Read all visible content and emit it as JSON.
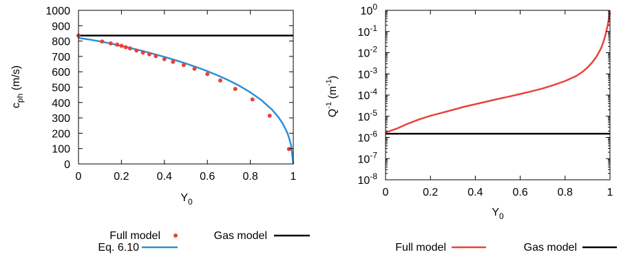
{
  "colors": {
    "full_model": "#e8423a",
    "eq_610": "#2b8fd6",
    "gas_model": "#000000"
  },
  "chart_data": [
    {
      "type": "line",
      "xlabel": "Y_0",
      "ylabel": "c_ph (m/s)",
      "xlim": [
        0,
        1
      ],
      "ylim": [
        0,
        1000
      ],
      "xticks": [
        0,
        0.2,
        0.4,
        0.6,
        0.8,
        1
      ],
      "xtick_labels": [
        "0",
        "0.2",
        "0.4",
        "0.6",
        "0.8",
        "1"
      ],
      "yticks": [
        0,
        100,
        200,
        300,
        400,
        500,
        600,
        700,
        800,
        900,
        1000
      ],
      "ytick_labels": [
        "0",
        "100",
        "200",
        "300",
        "400",
        "500",
        "600",
        "700",
        "800",
        "900",
        "1000"
      ],
      "grid": false,
      "legend_placement": "below",
      "series": [
        {
          "name": "Full model",
          "style": "points",
          "color": "#e8423a",
          "x": [
            0,
            0.11,
            0.15,
            0.18,
            0.2,
            0.22,
            0.24,
            0.27,
            0.3,
            0.33,
            0.36,
            0.4,
            0.44,
            0.49,
            0.54,
            0.6,
            0.66,
            0.73,
            0.81,
            0.89,
            0.98
          ],
          "y": [
            836,
            797,
            785,
            777,
            769,
            760,
            752,
            738,
            725,
            714,
            702,
            682,
            665,
            644,
            620,
            585,
            543,
            488,
            420,
            314,
            97
          ]
        },
        {
          "name": "Eq. 6.10",
          "style": "line",
          "color": "#2b8fd6",
          "x": [
            0,
            0.05,
            0.1,
            0.15,
            0.2,
            0.25,
            0.3,
            0.35,
            0.4,
            0.45,
            0.5,
            0.55,
            0.6,
            0.65,
            0.7,
            0.75,
            0.8,
            0.85,
            0.9,
            0.93,
            0.95,
            0.97,
            0.98,
            0.99,
            1.0
          ],
          "y": [
            820,
            810,
            798,
            784,
            768,
            752,
            735,
            716,
            697,
            676,
            654,
            630,
            604,
            575,
            544,
            508,
            466,
            417,
            355,
            306,
            265,
            210,
            172,
            120,
            0
          ]
        },
        {
          "name": "Gas model",
          "style": "line",
          "color": "#000000",
          "x": [
            0,
            1
          ],
          "y": [
            836,
            836
          ]
        }
      ]
    },
    {
      "type": "line",
      "xlabel": "Y_0",
      "ylabel": "Q^-1 (m^-1)",
      "xlim": [
        0,
        1
      ],
      "ylim": [
        1e-08,
        1
      ],
      "yscale": "log",
      "xticks": [
        0,
        0.2,
        0.4,
        0.6,
        0.8,
        1
      ],
      "xtick_labels": [
        "0",
        "0.2",
        "0.4",
        "0.6",
        "0.8",
        "1"
      ],
      "ytick_exponents": [
        -8,
        -7,
        -6,
        -5,
        -4,
        -3,
        -2,
        -1,
        0
      ],
      "ytick_base": "10",
      "grid": false,
      "legend_placement": "below",
      "series": [
        {
          "name": "Full model",
          "style": "line",
          "color": "#e8423a",
          "x": [
            0,
            0.05,
            0.1,
            0.15,
            0.2,
            0.25,
            0.3,
            0.35,
            0.4,
            0.45,
            0.5,
            0.55,
            0.6,
            0.65,
            0.7,
            0.75,
            0.8,
            0.85,
            0.88,
            0.9,
            0.92,
            0.94,
            0.96,
            0.97,
            0.98,
            0.99,
            1.0
          ],
          "y": [
            1.7e-06,
            2.6e-06,
            4.5e-06,
            7.1e-06,
            1.05e-05,
            1.45e-05,
            2e-05,
            2.8e-05,
            3.7e-05,
            4.9e-05,
            6.5e-05,
            8.5e-05,
            0.000112,
            0.00015,
            0.000205,
            0.0003,
            0.00046,
            0.0008,
            0.0013,
            0.002,
            0.0034,
            0.0065,
            0.016,
            0.03,
            0.07,
            0.2,
            0.8
          ]
        },
        {
          "name": "Gas model",
          "style": "line",
          "color": "#000000",
          "x": [
            0,
            1
          ],
          "y": [
            1.5e-06,
            1.5e-06
          ]
        }
      ]
    }
  ]
}
